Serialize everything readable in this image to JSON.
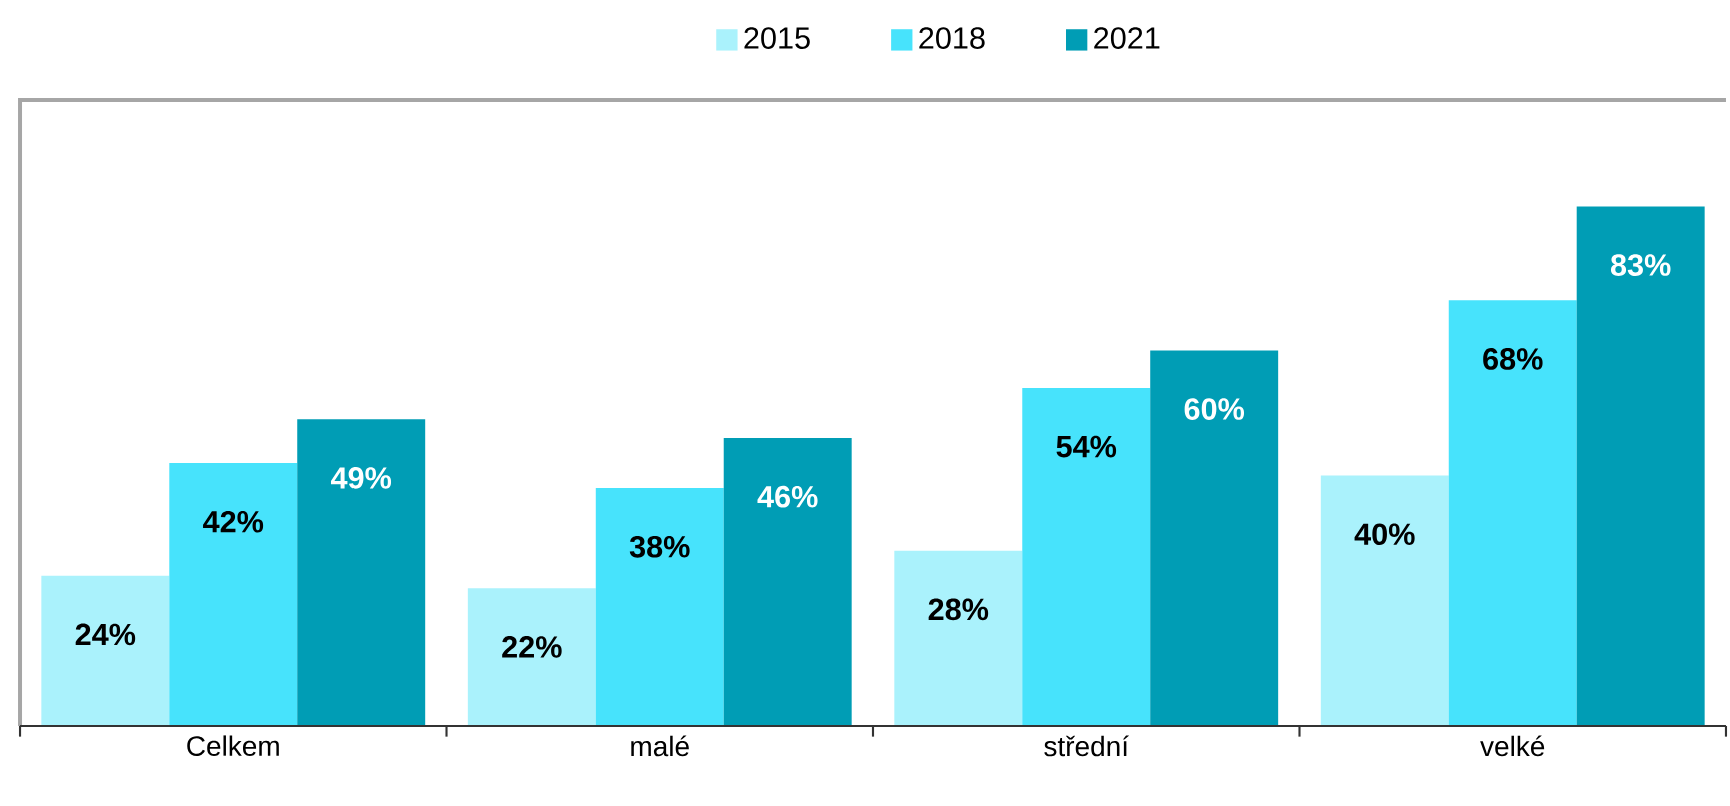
{
  "chart_data": {
    "type": "bar",
    "categories": [
      "Celkem",
      "malé",
      "střední",
      "velké"
    ],
    "series": [
      {
        "name": "2015",
        "color": "#aaf2fc",
        "values": [
          24,
          22,
          28,
          40
        ],
        "value_labels": [
          "24%",
          "22%",
          "28%",
          "40%"
        ]
      },
      {
        "name": "2018",
        "color": "#47e3fc",
        "values": [
          42,
          38,
          54,
          68
        ],
        "value_labels": [
          "42%",
          "38%",
          "54%",
          "68%"
        ]
      },
      {
        "name": "2021",
        "color": "#009db5",
        "values": [
          49,
          46,
          60,
          83
        ],
        "value_labels": [
          "49%",
          "46%",
          "60%",
          "83%"
        ]
      }
    ],
    "ylim": [
      0,
      100
    ],
    "tick_labels": "x",
    "legend": "top",
    "grid": false
  }
}
